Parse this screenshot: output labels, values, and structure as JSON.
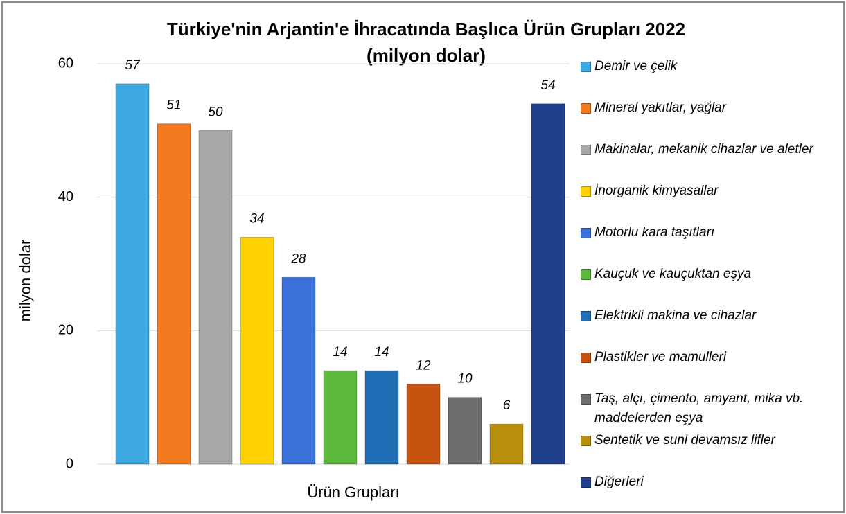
{
  "chart_data": {
    "type": "bar",
    "title": "Türkiye'nin Arjantin'e İhracatında Başlıca Ürün Grupları 2022",
    "subtitle": "(milyon dolar)",
    "x_label": "Ürün Grupları",
    "y_label": "milyon dolar",
    "categories": [
      null
    ],
    "series": [
      {
        "name": "Demir ve çelik",
        "color": "#3ea8e2",
        "values": [
          57
        ]
      },
      {
        "name": "Mineral yakıtlar, yağlar",
        "color": "#f47a20",
        "values": [
          51
        ]
      },
      {
        "name": "Makinalar, mekanik cihazlar ve aletler",
        "color": "#a8a8a8",
        "values": [
          50
        ]
      },
      {
        "name": "İnorganik kimyasallar",
        "color": "#ffd200",
        "values": [
          34
        ]
      },
      {
        "name": "Motorlu kara taşıtları",
        "color": "#3b70d9",
        "values": [
          28
        ]
      },
      {
        "name": "Kauçuk ve kauçuktan eşya",
        "color": "#5db93b",
        "values": [
          14
        ]
      },
      {
        "name": "Elektrikli makina ve cihazlar",
        "color": "#206eb6",
        "values": [
          14
        ]
      },
      {
        "name": "Plastikler ve mamulleri",
        "color": "#c6520f",
        "values": [
          12
        ]
      },
      {
        "name": "Taş, alçı, çimento, amyant, mika vb. maddelerden eşya",
        "color": "#6c6c6c",
        "values": [
          10
        ]
      },
      {
        "name": "Sentetik ve suni devamsız lifler",
        "color": "#b8900d",
        "values": [
          6
        ]
      },
      {
        "name": "Diğerleri",
        "color": "#20408b",
        "values": [
          54
        ]
      }
    ],
    "ylim": [
      0,
      60
    ],
    "yticks": [
      0,
      20,
      40,
      60
    ],
    "grid": true,
    "legend": "right"
  }
}
